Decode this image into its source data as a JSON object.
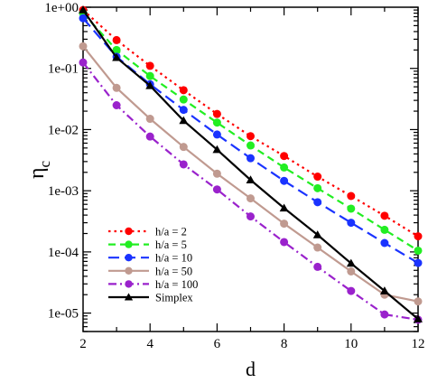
{
  "chart_data": {
    "type": "line",
    "title": "",
    "xlabel": "d",
    "ylabel": "η",
    "ylabel_subscript": "c",
    "x": [
      2,
      3,
      4,
      5,
      6,
      7,
      8,
      9,
      10,
      11,
      12
    ],
    "xlim": [
      2,
      12
    ],
    "ylim": [
      5e-06,
      1
    ],
    "yscale": "log",
    "grid": false,
    "legend_position": "bottom-left",
    "x_ticks": [
      2,
      4,
      6,
      8,
      10,
      12
    ],
    "x_tick_labels": [
      "2",
      "4",
      "6",
      "8",
      "10",
      "12"
    ],
    "y_ticks": [
      1e-05,
      0.0001,
      0.001,
      0.01,
      0.1,
      1
    ],
    "y_tick_labels": [
      "1e-05",
      "1e-04",
      "1e-03",
      "1e-02",
      "1e-01",
      "1e+00"
    ],
    "series": [
      {
        "name": "h/a = 2",
        "color": "#ff0000",
        "line_style": "dotted",
        "marker": "circle",
        "values": [
          0.9,
          0.29,
          0.11,
          0.044,
          0.018,
          0.0078,
          0.0037,
          0.0017,
          0.00082,
          0.00039,
          0.00018
        ]
      },
      {
        "name": "h/a = 5",
        "color": "#22ee22",
        "line_style": "dashed",
        "marker": "circle",
        "values": [
          0.8,
          0.2,
          0.075,
          0.031,
          0.013,
          0.0055,
          0.0024,
          0.0011,
          0.00051,
          0.00023,
          0.000105
        ]
      },
      {
        "name": "h/a = 10",
        "color": "#1a33ff",
        "line_style": "longdash",
        "marker": "circle",
        "values": [
          0.66,
          0.155,
          0.055,
          0.021,
          0.0083,
          0.0034,
          0.00145,
          0.00065,
          0.0003,
          0.00014,
          6.6e-05
        ]
      },
      {
        "name": "h/a = 50",
        "color": "#c09a90",
        "line_style": "solid",
        "marker": "circle",
        "values": [
          0.23,
          0.048,
          0.015,
          0.0052,
          0.0019,
          0.00075,
          0.00029,
          0.000118,
          4.8e-05,
          2e-05,
          1.55e-05
        ]
      },
      {
        "name": "h/a = 100",
        "color": "#9a22cc",
        "line_style": "dashdot",
        "marker": "circle",
        "values": [
          0.125,
          0.025,
          0.0077,
          0.0027,
          0.00105,
          0.00038,
          0.000145,
          5.7e-05,
          2.3e-05,
          9.5e-06,
          7.8e-06
        ]
      },
      {
        "name": "Simplex",
        "color": "#000000",
        "line_style": "solid",
        "marker": "triangle",
        "values": [
          0.9,
          0.15,
          0.052,
          0.014,
          0.0047,
          0.0015,
          0.00052,
          0.00019,
          6.5e-05,
          2.3e-05,
          8e-06
        ]
      }
    ]
  }
}
